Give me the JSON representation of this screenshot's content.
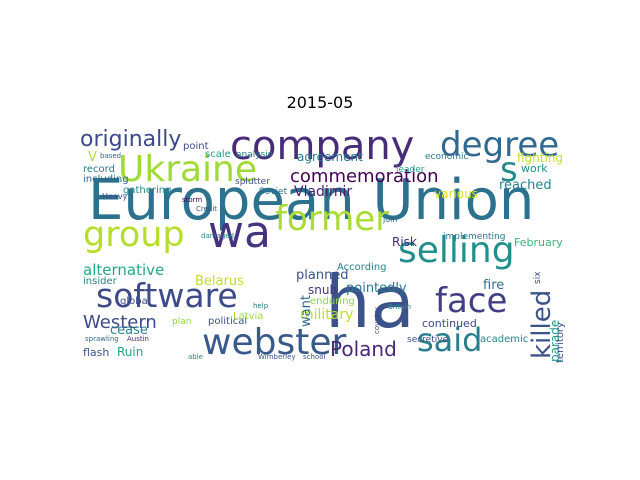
{
  "figure": {
    "title": "2015-05"
  },
  "words": [
    {
      "text": "European Union",
      "color": "#2c728e"
    },
    {
      "text": "ha",
      "color": "#3b528b"
    },
    {
      "text": "company",
      "color": "#472c7a"
    },
    {
      "text": "Ukraine",
      "color": "#a0da39"
    },
    {
      "text": "degree",
      "color": "#31688e"
    },
    {
      "text": "wa",
      "color": "#46337f"
    },
    {
      "text": "former",
      "color": "#a8db34"
    },
    {
      "text": "selling",
      "color": "#21908d"
    },
    {
      "text": "software",
      "color": "#3e4a89"
    },
    {
      "text": "face",
      "color": "#433e85"
    },
    {
      "text": "webster",
      "color": "#38598c"
    },
    {
      "text": "said",
      "color": "#277f8e"
    },
    {
      "text": "group",
      "color": "#b5de2b"
    },
    {
      "text": "originally",
      "color": "#3e4989"
    },
    {
      "text": "s",
      "color": "#238a8d"
    },
    {
      "text": "commemoration",
      "color": "#440154"
    },
    {
      "text": "killed",
      "color": "#3b528b"
    },
    {
      "text": "Poland",
      "color": "#482878"
    },
    {
      "text": "Western",
      "color": "#3e4a89"
    },
    {
      "text": "alternative",
      "color": "#22a884"
    },
    {
      "text": "Vladimir",
      "color": "#481f70"
    },
    {
      "text": "agreement",
      "color": "#2a788e"
    },
    {
      "text": "reached",
      "color": "#26828e"
    },
    {
      "text": "fighting",
      "color": "#c2df23"
    },
    {
      "text": "military",
      "color": "#b5de2b"
    },
    {
      "text": "pointedly",
      "color": "#2a788e"
    },
    {
      "text": "planned",
      "color": "#3b528b"
    },
    {
      "text": "Belarus",
      "color": "#bddf26"
    },
    {
      "text": "want",
      "color": "#31688e"
    },
    {
      "text": "fire",
      "color": "#2c728e"
    },
    {
      "text": "snub",
      "color": "#46337f"
    },
    {
      "text": "Risk",
      "color": "#482878"
    },
    {
      "text": "February",
      "color": "#35b779"
    },
    {
      "text": "continued",
      "color": "#3e4989"
    },
    {
      "text": "parade",
      "color": "#1f9e89"
    },
    {
      "text": "cease",
      "color": "#26828e"
    },
    {
      "text": "Ruin",
      "color": "#21a585"
    },
    {
      "text": "flash",
      "color": "#3b528b"
    },
    {
      "text": "various",
      "color": "#dde318"
    },
    {
      "text": "work",
      "color": "#21908d"
    },
    {
      "text": "record",
      "color": "#2a788e"
    },
    {
      "text": "including",
      "color": "#31688e"
    },
    {
      "text": "gathering",
      "color": "#238a8d"
    },
    {
      "text": "Soviet",
      "color": "#2c728e"
    },
    {
      "text": "leader",
      "color": "#1f9e89"
    },
    {
      "text": "implementing",
      "color": "#2a788e"
    },
    {
      "text": "According",
      "color": "#26828e"
    },
    {
      "text": "enduring",
      "color": "#8fd744"
    },
    {
      "text": "global",
      "color": "#3e4a89"
    },
    {
      "text": "insider",
      "color": "#26828e"
    },
    {
      "text": "political",
      "color": "#3b528b"
    },
    {
      "text": "secretive",
      "color": "#3e4989"
    },
    {
      "text": "academic",
      "color": "#26828e"
    },
    {
      "text": "scale",
      "color": "#1f9e89"
    },
    {
      "text": "analysis",
      "color": "#2a788e"
    },
    {
      "text": "point",
      "color": "#3e4a89"
    },
    {
      "text": "economic",
      "color": "#2a788e"
    },
    {
      "text": "Latvia",
      "color": "#a0da39"
    },
    {
      "text": "splutter",
      "color": "#3b528b"
    },
    {
      "text": "territory",
      "color": "#3b528b"
    },
    {
      "text": "V",
      "color": "#b5de2b"
    },
    {
      "text": "based",
      "color": "#31688e"
    },
    {
      "text": "Heavy",
      "color": "#3e4989"
    },
    {
      "text": "plan",
      "color": "#8fd744"
    },
    {
      "text": "join",
      "color": "#31688e"
    },
    {
      "text": "storm",
      "color": "#440154"
    },
    {
      "text": "Credit",
      "color": "#3b528b"
    },
    {
      "text": "damaged",
      "color": "#26828e"
    },
    {
      "text": "six",
      "color": "#3e4989"
    },
    {
      "text": "school",
      "color": "#3b528b"
    },
    {
      "text": "Britain",
      "color": "#21908d"
    },
    {
      "text": "help",
      "color": "#2a788e"
    },
    {
      "text": "Austin",
      "color": "#482878"
    },
    {
      "text": "country",
      "color": "#3e4a89"
    },
    {
      "text": "sprawling",
      "color": "#31688e"
    },
    {
      "text": "able",
      "color": "#26828e"
    },
    {
      "text": "Wimberley",
      "color": "#3b528b"
    }
  ]
}
